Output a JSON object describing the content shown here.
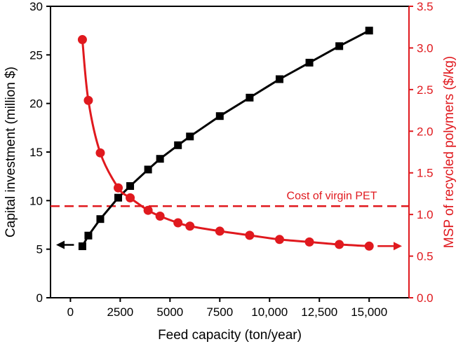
{
  "chart_data": {
    "type": "line",
    "title": "",
    "xlabel": "Feed capacity (ton/year)",
    "xlim": [
      -1000,
      17000
    ],
    "xticks": [
      0,
      2500,
      5000,
      7500,
      10000,
      12500,
      15000
    ],
    "xtick_labels": [
      "0",
      "2500",
      "5000",
      "7500",
      "10,000",
      "12,500",
      "15,000"
    ],
    "left_axis": {
      "label": "Capital investment (million $)",
      "ylim": [
        0,
        30
      ],
      "ticks": [
        0,
        5,
        10,
        15,
        20,
        25,
        30
      ],
      "tick_labels": [
        "0",
        "5",
        "10",
        "15",
        "20",
        "25",
        "30"
      ],
      "color": "#000000"
    },
    "right_axis": {
      "label": "MSP of recycled polymers ($/kg)",
      "ylim": [
        0,
        3.5
      ],
      "ticks": [
        0,
        0.5,
        1,
        1.5,
        2,
        2.5,
        3,
        3.5
      ],
      "tick_labels": [
        "0.0",
        "0.5",
        "1.0",
        "1.5",
        "2.0",
        "2.5",
        "3.0",
        "3.5"
      ],
      "color": "#e0191e"
    },
    "series": [
      {
        "name": "Capital investment",
        "axis": "left",
        "marker": "square",
        "color": "#000000",
        "x": [
          600,
          900,
          1500,
          2400,
          3000,
          3900,
          4500,
          5400,
          6000,
          7500,
          9000,
          10500,
          12000,
          13500,
          15000
        ],
        "values": [
          5.3,
          6.4,
          8.1,
          10.3,
          11.5,
          13.2,
          14.3,
          15.7,
          16.6,
          18.7,
          20.6,
          22.5,
          24.2,
          25.9,
          27.5
        ]
      },
      {
        "name": "MSP of recycled polymers",
        "axis": "right",
        "marker": "circle",
        "color": "#e0191e",
        "x": [
          600,
          900,
          1500,
          2400,
          3000,
          3900,
          4500,
          5400,
          6000,
          7500,
          9000,
          10500,
          12000,
          13500,
          15000
        ],
        "values": [
          3.1,
          2.37,
          1.74,
          1.32,
          1.2,
          1.05,
          0.98,
          0.9,
          0.86,
          0.8,
          0.75,
          0.7,
          0.67,
          0.64,
          0.62
        ]
      }
    ],
    "reference_line": {
      "label": "Cost of virgin PET",
      "axis": "right",
      "value": 1.1,
      "style": "dashed",
      "color": "#e0191e"
    },
    "axis_arrows": [
      {
        "target": "left",
        "color": "#000000"
      },
      {
        "target": "right",
        "color": "#e0191e"
      }
    ]
  }
}
